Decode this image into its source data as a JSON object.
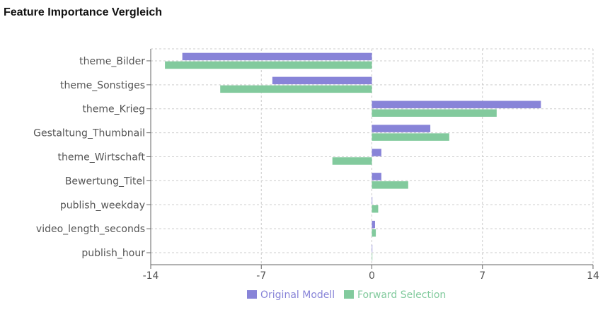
{
  "title": "Feature Importance Vergleich",
  "chart_data": {
    "type": "bar",
    "orientation": "horizontal",
    "categories": [
      "theme_Bilder",
      "theme_Sonstiges",
      "theme_Krieg",
      "Gestaltung_Thumbnail",
      "theme_Wirtschaft",
      "Bewertung_Titel",
      "publish_weekday",
      "video_length_seconds",
      "publish_hour"
    ],
    "series": [
      {
        "name": "Original Modell",
        "color": "#8884d8",
        "values": [
          -12.0,
          -6.3,
          10.7,
          3.7,
          0.6,
          0.6,
          0.03,
          0.2,
          0.03
        ]
      },
      {
        "name": "Forward Selection",
        "color": "#82ca9d",
        "values": [
          -13.1,
          -9.6,
          7.9,
          4.9,
          -2.5,
          2.3,
          0.4,
          0.25,
          0.03
        ]
      }
    ],
    "xlim": [
      -14,
      14
    ],
    "xticks": [
      "-14",
      "-7",
      "0",
      "7",
      "14"
    ],
    "xtick_values": [
      -14,
      -7,
      0,
      7,
      14
    ],
    "grid": true,
    "legend_position": "bottom"
  }
}
